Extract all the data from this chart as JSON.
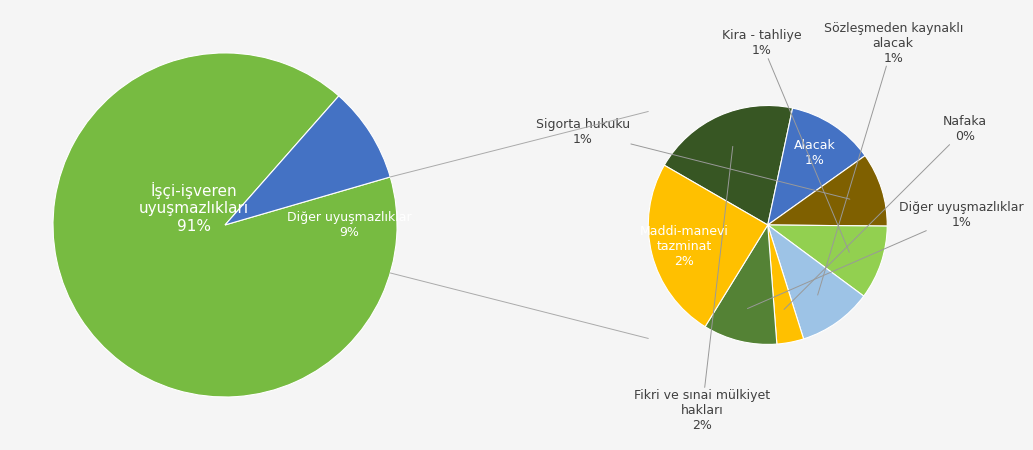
{
  "main_pie": {
    "values": [
      91,
      9
    ],
    "colors": [
      "#77bb41",
      "#4472c4"
    ],
    "label_isci": "İşçi-işveren\nuyuşmazlıkları\n91%",
    "label_diger": "Diğer uyuşmazlıklar\n9%"
  },
  "sub_pie": {
    "segments": [
      {
        "label": "Fikri ve sınai mülkiyet\nhakları\n2%",
        "value": 22,
        "color": "#375623",
        "inside": false
      },
      {
        "label": "Alacak\n1%",
        "value": 13,
        "color": "#4472c4",
        "inside": true
      },
      {
        "label": "Sigorta hukuku\n1%",
        "value": 11,
        "color": "#7f6000",
        "inside": false
      },
      {
        "label": "Kira - tahliye\n1%",
        "value": 11,
        "color": "#92d050",
        "inside": false
      },
      {
        "label": "Sözleşmeden kaynaklı\nalacak\n1%",
        "value": 11,
        "color": "#9dc3e6",
        "inside": false
      },
      {
        "label": "Nafaka\n0%",
        "value": 4,
        "color": "#ffc000",
        "inside": false
      },
      {
        "label": "Diğer uyuşmazlıklar\n1%",
        "value": 11,
        "color": "#548235",
        "inside": false
      },
      {
        "label": "Maddi-manevi\ntazminat\n2%",
        "value": 27,
        "color": "#ffc000",
        "inside": true
      }
    ],
    "startangle": 150
  },
  "background_color": "#f5f5f5",
  "font_color": "#404040",
  "font_size": 9,
  "label_fontsize": 9
}
